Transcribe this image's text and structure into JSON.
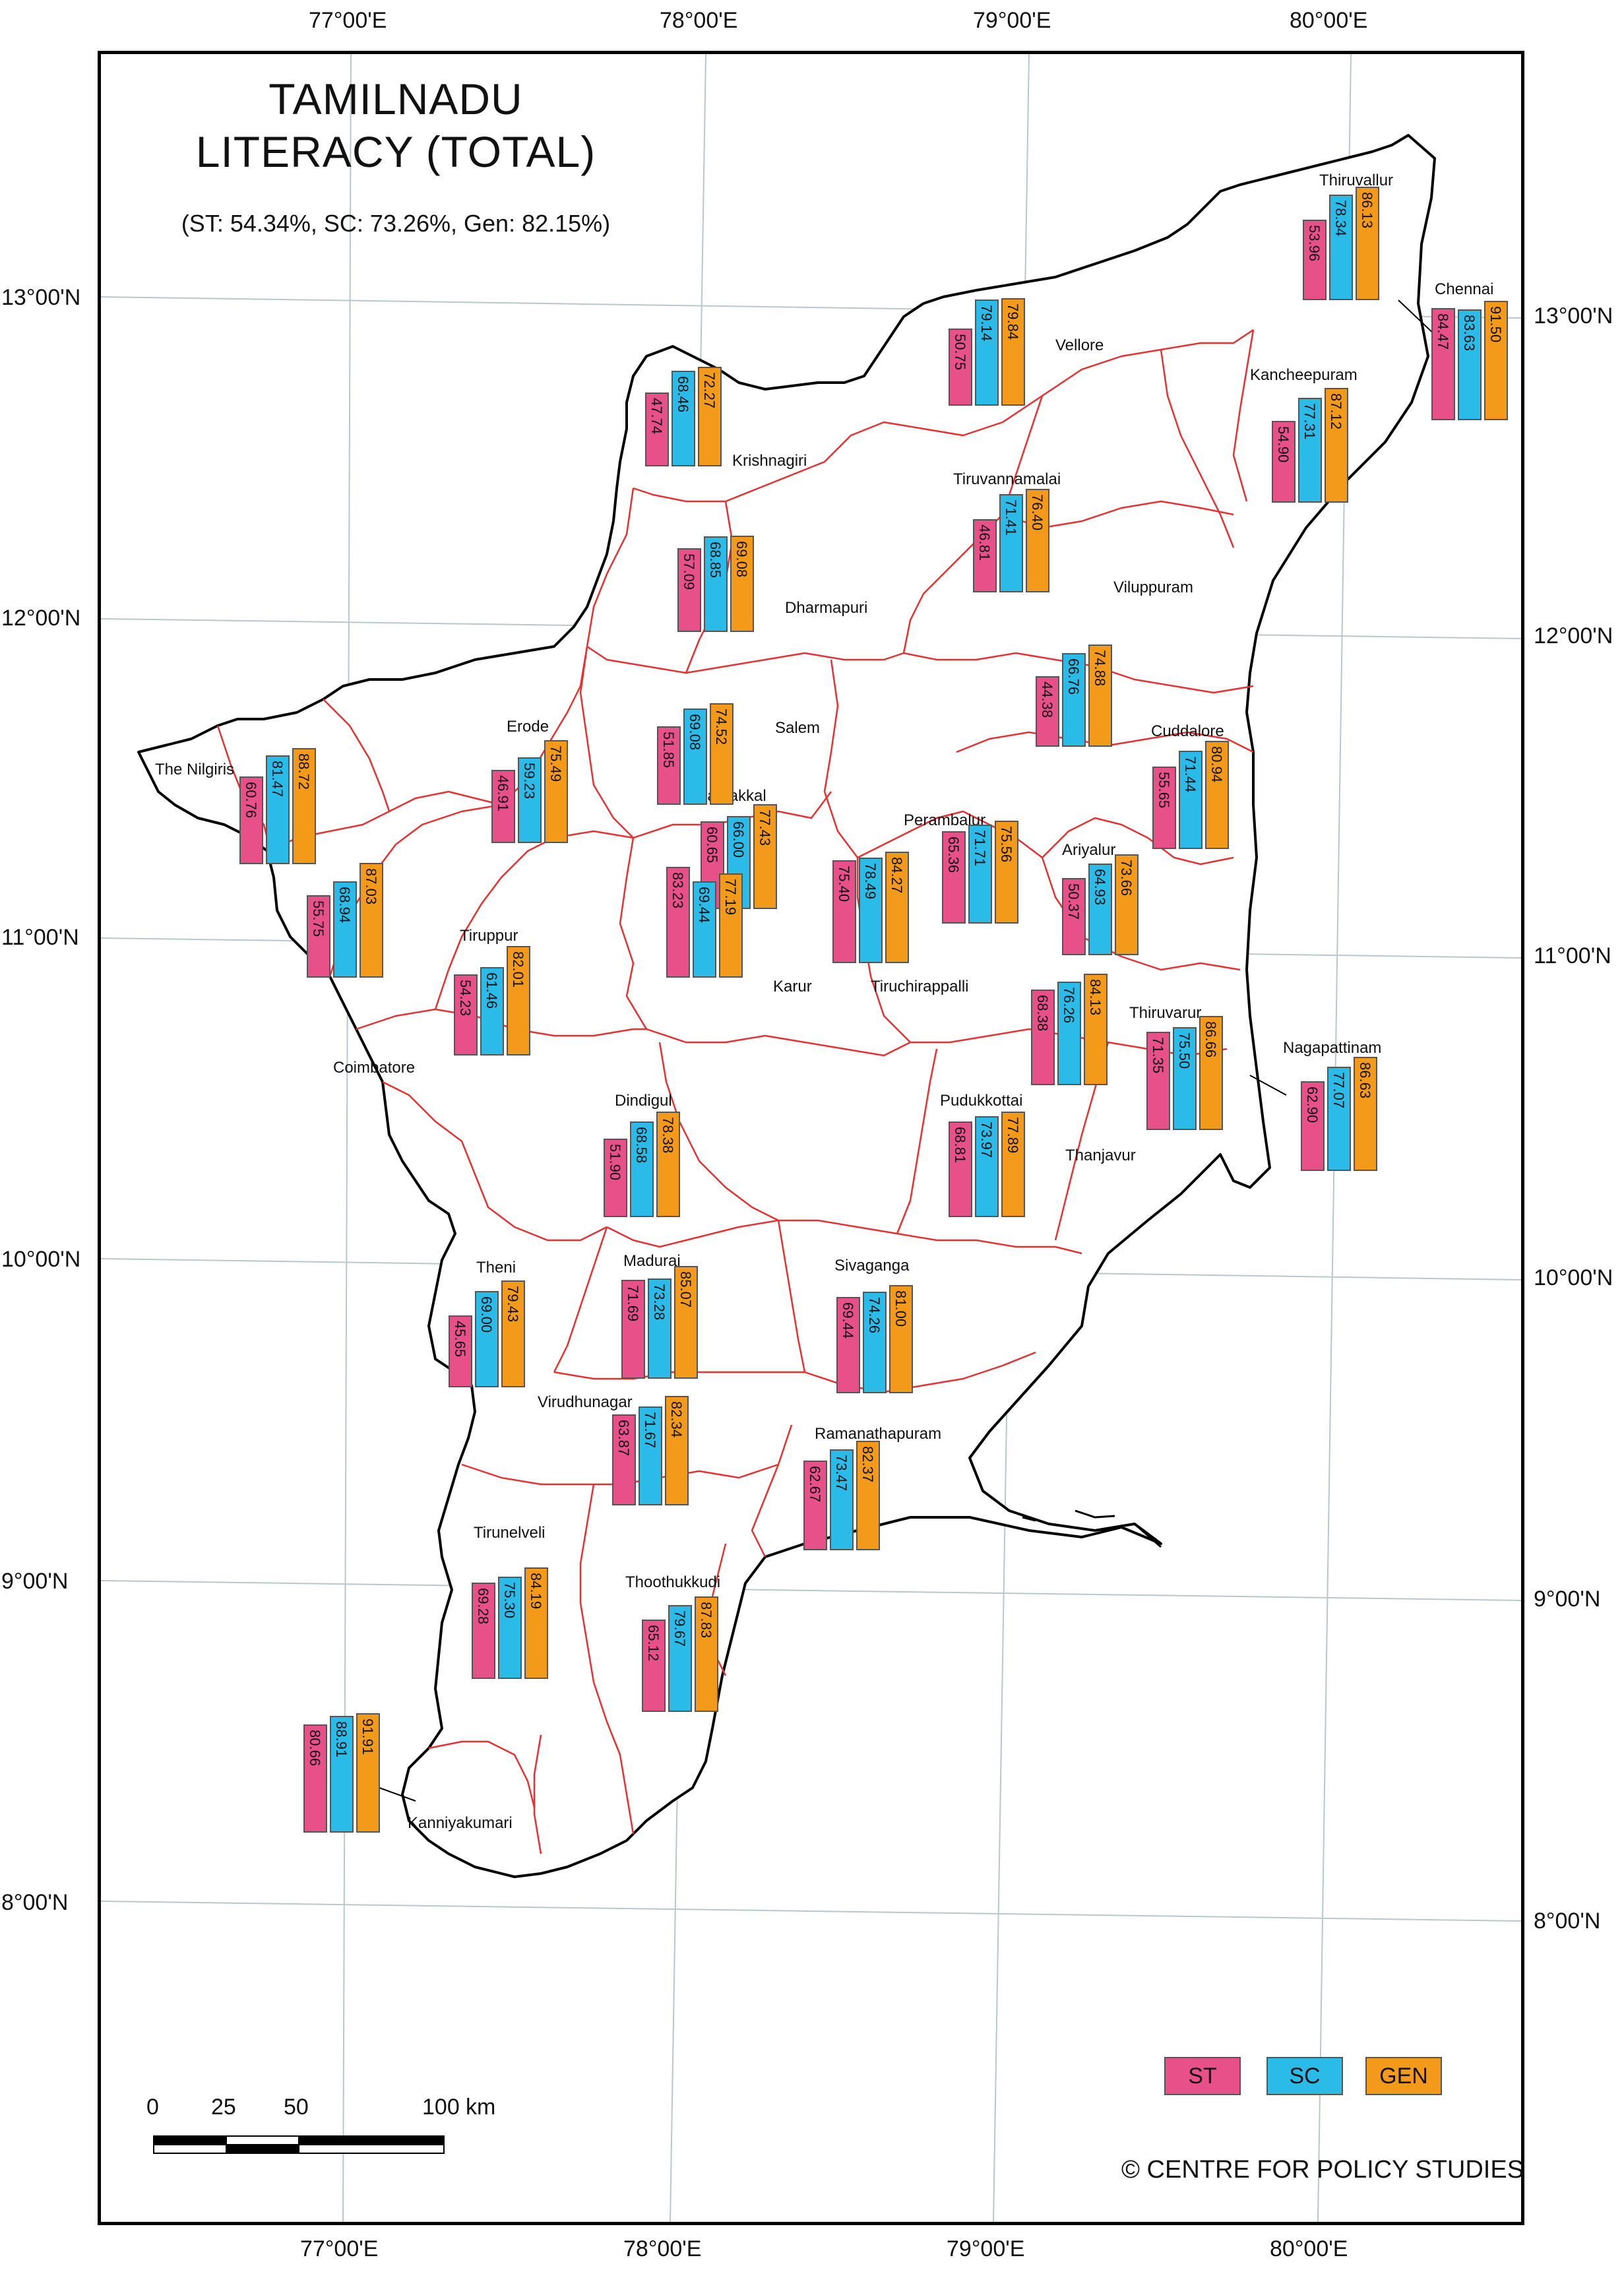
{
  "title_line1": "TAMILNADU",
  "title_line2": "LITERACY (TOTAL)",
  "subtitle": "(ST: 54.34%, SC: 73.26%, Gen: 82.15%)",
  "colors": {
    "st": "#e8508a",
    "sc": "#2bbbe8",
    "gen": "#f39a1a",
    "boundary": "#e83030",
    "outline": "#000000",
    "grid": "#b8c8cc"
  },
  "longitudes": [
    "77°00'E",
    "78°00'E",
    "79°00'E",
    "80°00'E"
  ],
  "latitudes": [
    "13°00'N",
    "12°00'N",
    "11°00'N",
    "10°00'N",
    "9°00'N",
    "8°00'N"
  ],
  "legend": {
    "st": "ST",
    "sc": "SC",
    "gen": "GEN"
  },
  "scale": {
    "ticks": [
      "0",
      "25",
      "50",
      "100"
    ],
    "unit": "km"
  },
  "copyright": "© CENTRE FOR POLICY STUDIES",
  "districts": [
    {
      "name": "Thiruvallur",
      "st": "53.96",
      "sc": "78.34",
      "gen": "86.13"
    },
    {
      "name": "Chennai",
      "st": "84.47",
      "sc": "83.63",
      "gen": "91.50"
    },
    {
      "name": "Vellore",
      "st": "50.75",
      "sc": "79.14",
      "gen": "79.84"
    },
    {
      "name": "Kancheepuram",
      "st": "54.90",
      "sc": "77.31",
      "gen": "87.12"
    },
    {
      "name": "Krishnagiri",
      "st": "47.74",
      "sc": "68.46",
      "gen": "72.27"
    },
    {
      "name": "Tiruvannamalai",
      "st": "46.81",
      "sc": "71.41",
      "gen": "76.40"
    },
    {
      "name": "Dharmapuri",
      "st": "57.09",
      "sc": "68.85",
      "gen": "69.08"
    },
    {
      "name": "Viluppuram",
      "st": "44.38",
      "sc": "66.76",
      "gen": "74.88"
    },
    {
      "name": "Salem",
      "st": "51.85",
      "sc": "69.08",
      "gen": "74.52"
    },
    {
      "name": "Erode",
      "st": "46.91",
      "sc": "59.23",
      "gen": "75.49"
    },
    {
      "name": "The Nilgiris",
      "st": "60.76",
      "sc": "81.47",
      "gen": "88.72"
    },
    {
      "name": "Cuddalore",
      "st": "55.65",
      "sc": "71.44",
      "gen": "80.94"
    },
    {
      "name": "Namakkal",
      "st": "60.65",
      "sc": "66.00",
      "gen": "77.43"
    },
    {
      "name": "Perambalur",
      "st": "65.36",
      "sc": "71.71",
      "gen": "75.56"
    },
    {
      "name": "Ariyalur",
      "st": "50.37",
      "sc": "64.93",
      "gen": "73.66"
    },
    {
      "name": "Coimbatore",
      "st": "55.75",
      "sc": "68.94",
      "gen": "87.03"
    },
    {
      "name": "Tiruchirappalli",
      "st": "75.40",
      "sc": "78.49",
      "gen": "84.27"
    },
    {
      "name": "Karur",
      "st": "83.23",
      "sc": "69.44",
      "gen": "77.19"
    },
    {
      "name": "Tiruppur",
      "st": "54.23",
      "sc": "61.46",
      "gen": "82.01"
    },
    {
      "name": "Thiruvarur",
      "st": "68.38",
      "sc": "76.26",
      "gen": "84.13"
    },
    {
      "name": "Thanjavur",
      "st": "71.35",
      "sc": "75.50",
      "gen": "86.66"
    },
    {
      "name": "Nagapattinam",
      "st": "62.90",
      "sc": "77.07",
      "gen": "86.63"
    },
    {
      "name": "Dindigul",
      "st": "51.90",
      "sc": "68.58",
      "gen": "78.38"
    },
    {
      "name": "Pudukkottai",
      "st": "68.81",
      "sc": "73.97",
      "gen": "77.89"
    },
    {
      "name": "Theni",
      "st": "45.65",
      "sc": "69.00",
      "gen": "79.43"
    },
    {
      "name": "Madurai",
      "st": "71.69",
      "sc": "73.28",
      "gen": "85.07"
    },
    {
      "name": "Sivaganga",
      "st": "69.44",
      "sc": "74.26",
      "gen": "81.00"
    },
    {
      "name": "Virudhunagar",
      "st": "63.87",
      "sc": "71.67",
      "gen": "82.34"
    },
    {
      "name": "Ramanathapuram",
      "st": "62.67",
      "sc": "73.47",
      "gen": "82.37"
    },
    {
      "name": "Tirunelveli",
      "st": "69.28",
      "sc": "75.30",
      "gen": "84.19"
    },
    {
      "name": "Thoothukkudi",
      "st": "65.12",
      "sc": "79.67",
      "gen": "87.83"
    },
    {
      "name": "Kanniyakumari",
      "st": "80.66",
      "sc": "88.91",
      "gen": "91.91"
    }
  ]
}
